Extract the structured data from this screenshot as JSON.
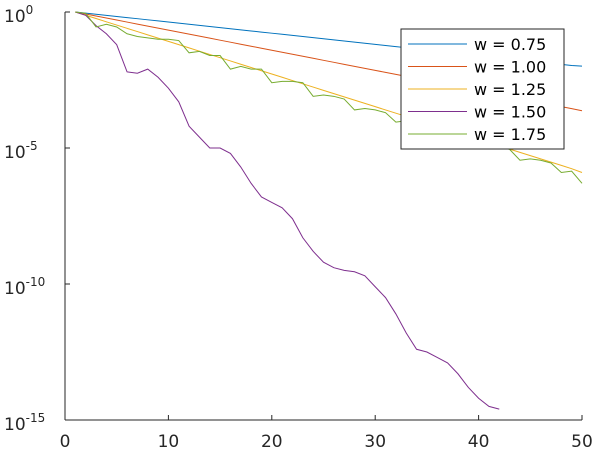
{
  "chart_data": {
    "type": "line",
    "title": "",
    "xlabel": "",
    "ylabel": "",
    "xlim": [
      0,
      50
    ],
    "ylim_log10": [
      -15,
      0
    ],
    "yscale": "log",
    "grid": false,
    "legend_position": "top-right",
    "x_ticks": [
      {
        "value": 0,
        "label": "0"
      },
      {
        "value": 10,
        "label": "10"
      },
      {
        "value": 20,
        "label": "20"
      },
      {
        "value": 30,
        "label": "30"
      },
      {
        "value": 40,
        "label": "40"
      },
      {
        "value": 50,
        "label": "50"
      }
    ],
    "y_ticks": [
      {
        "log10": 0,
        "base": "10",
        "exp": "0"
      },
      {
        "log10": -5,
        "base": "10",
        "exp": "-5"
      },
      {
        "log10": -10,
        "base": "10",
        "exp": "-10"
      },
      {
        "log10": -15,
        "base": "10",
        "exp": "-15"
      }
    ],
    "x": [
      1,
      2,
      3,
      4,
      5,
      6,
      7,
      8,
      9,
      10,
      11,
      12,
      13,
      14,
      15,
      16,
      17,
      18,
      19,
      20,
      21,
      22,
      23,
      24,
      25,
      26,
      27,
      28,
      29,
      30,
      31,
      32,
      33,
      34,
      35,
      36,
      37,
      38,
      39,
      40,
      41,
      42,
      43,
      44,
      45,
      46,
      47,
      48,
      49,
      50
    ],
    "series": [
      {
        "name": "w = 0.75",
        "color": "#0072BD",
        "log10_values": [
          0,
          -0.041,
          -0.082,
          -0.123,
          -0.164,
          -0.205,
          -0.246,
          -0.287,
          -0.328,
          -0.369,
          -0.41,
          -0.451,
          -0.492,
          -0.533,
          -0.574,
          -0.615,
          -0.656,
          -0.697,
          -0.738,
          -0.779,
          -0.82,
          -0.861,
          -0.902,
          -0.943,
          -0.984,
          -1.025,
          -1.066,
          -1.107,
          -1.148,
          -1.189,
          -1.23,
          -1.271,
          -1.312,
          -1.353,
          -1.394,
          -1.435,
          -1.476,
          -1.517,
          -1.558,
          -1.599,
          -1.64,
          -1.681,
          -1.722,
          -1.763,
          -1.804,
          -1.845,
          -1.886,
          -1.927,
          -1.968,
          -1.99
        ]
      },
      {
        "name": "w = 1.00",
        "color": "#D95319",
        "log10_values": [
          0,
          -0.074,
          -0.148,
          -0.222,
          -0.296,
          -0.37,
          -0.444,
          -0.518,
          -0.592,
          -0.666,
          -0.74,
          -0.814,
          -0.888,
          -0.962,
          -1.036,
          -1.11,
          -1.184,
          -1.258,
          -1.332,
          -1.406,
          -1.48,
          -1.554,
          -1.628,
          -1.702,
          -1.776,
          -1.85,
          -1.924,
          -1.998,
          -2.072,
          -2.146,
          -2.22,
          -2.294,
          -2.368,
          -2.442,
          -2.516,
          -2.59,
          -2.664,
          -2.738,
          -2.812,
          -2.886,
          -2.96,
          -3.034,
          -3.108,
          -3.182,
          -3.256,
          -3.33,
          -3.404,
          -3.478,
          -3.552,
          -3.63
        ]
      },
      {
        "name": "w = 1.25",
        "color": "#EDB120",
        "log10_values": [
          0,
          -0.12,
          -0.24,
          -0.36,
          -0.48,
          -0.6,
          -0.72,
          -0.84,
          -0.96,
          -1.08,
          -1.2,
          -1.32,
          -1.44,
          -1.56,
          -1.68,
          -1.8,
          -1.92,
          -2.04,
          -2.16,
          -2.28,
          -2.4,
          -2.52,
          -2.64,
          -2.76,
          -2.88,
          -3.0,
          -3.12,
          -3.24,
          -3.36,
          -3.48,
          -3.6,
          -3.72,
          -3.84,
          -3.96,
          -4.08,
          -4.2,
          -4.32,
          -4.44,
          -4.56,
          -4.68,
          -4.8,
          -4.92,
          -5.04,
          -5.16,
          -5.28,
          -5.4,
          -5.52,
          -5.64,
          -5.76,
          -5.9
        ]
      },
      {
        "name": "w = 1.50",
        "color": "#7E2F8E",
        "log10_values": [
          0,
          -0.12,
          -0.5,
          -0.8,
          -1.2,
          -2.2,
          -2.25,
          -2.1,
          -2.4,
          -2.8,
          -3.3,
          -4.2,
          -4.6,
          -5.0,
          -5.0,
          -5.2,
          -5.7,
          -6.3,
          -6.8,
          -7.0,
          -7.2,
          -7.6,
          -8.3,
          -8.8,
          -9.2,
          -9.4,
          -9.5,
          -9.55,
          -9.7,
          -10.1,
          -10.5,
          -11.1,
          -11.8,
          -12.4,
          -12.5,
          -12.7,
          -12.9,
          -13.3,
          -13.8,
          -14.2,
          -14.5,
          -14.6
        ]
      },
      {
        "name": "w = 1.75",
        "color": "#77AC30",
        "log10_values": [
          0,
          -0.2,
          -0.4,
          -0.45,
          -1.0,
          -1.1,
          -1.2,
          -1.25,
          -1.4,
          -1.9,
          -2.0,
          -2.05,
          -2.1,
          -2.1,
          -2.7,
          -2.75,
          -2.8,
          -2.9,
          -3.0,
          -3.2,
          -3.3,
          -3.35,
          -3.5,
          -3.6,
          -3.7,
          -3.9,
          -4.0,
          -4.1,
          -4.2,
          -4.3,
          -4.4,
          -4.6,
          -4.7,
          -4.8,
          -4.9,
          -5.0,
          -5.1,
          -5.2,
          -5.3,
          -5.4,
          -5.5,
          -5.6,
          -5.7,
          -5.8,
          -5.9,
          -6.0,
          -6.1,
          -6.2,
          -6.3,
          -6.4
        ],
        "log10_values_display": [
          0,
          -0.05,
          -0.55,
          -0.45,
          -0.55,
          -0.8,
          -0.9,
          -0.95,
          -1.0,
          -1.0,
          -1.05,
          -1.5,
          -1.45,
          -1.6,
          -1.6,
          -2.1,
          -2.0,
          -2.1,
          -2.1,
          -2.6,
          -2.55,
          -2.55,
          -2.6,
          -3.1,
          -3.05,
          -3.1,
          -3.2,
          -3.6,
          -3.55,
          -3.6,
          -3.7,
          -4.05,
          -4.0,
          -4.05,
          -4.1,
          -4.5,
          -4.45,
          -4.55,
          -4.55,
          -5.0,
          -4.95,
          -4.95,
          -5.05,
          -5.45,
          -5.4,
          -5.45,
          -5.55,
          -5.9,
          -5.85,
          -6.3
        ]
      }
    ]
  }
}
